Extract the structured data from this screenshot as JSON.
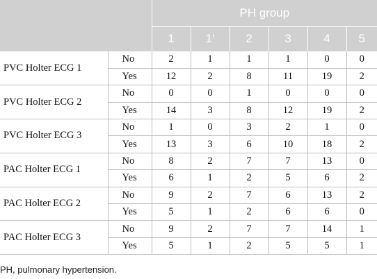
{
  "header": {
    "title": "PH group",
    "groups": [
      "1",
      "1′",
      "2",
      "3",
      "4",
      "5"
    ]
  },
  "rows": [
    {
      "measure": "PVC Holter ECG 1",
      "no": [
        "2",
        "1",
        "1",
        "1",
        "0",
        "0"
      ],
      "yes": [
        "12",
        "2",
        "8",
        "11",
        "19",
        "2"
      ]
    },
    {
      "measure": "PVC Holter ECG 2",
      "no": [
        "0",
        "0",
        "1",
        "0",
        "0",
        "0"
      ],
      "yes": [
        "14",
        "3",
        "8",
        "12",
        "19",
        "2"
      ]
    },
    {
      "measure": "PVC Holter ECG 3",
      "no": [
        "1",
        "0",
        "3",
        "2",
        "1",
        "0"
      ],
      "yes": [
        "13",
        "3",
        "6",
        "10",
        "18",
        "2"
      ]
    },
    {
      "measure": "PAC Holter ECG 1",
      "no": [
        "8",
        "2",
        "7",
        "7",
        "13",
        "0"
      ],
      "yes": [
        "6",
        "1",
        "2",
        "5",
        "6",
        "2"
      ]
    },
    {
      "measure": "PAC Holter ECG 2",
      "no": [
        "9",
        "2",
        "7",
        "6",
        "13",
        "2"
      ],
      "yes": [
        "5",
        "1",
        "2",
        "6",
        "6",
        "0"
      ]
    },
    {
      "measure": "PAC Holter ECG 3",
      "no": [
        "9",
        "2",
        "7",
        "7",
        "14",
        "1"
      ],
      "yes": [
        "5",
        "1",
        "2",
        "5",
        "5",
        "1"
      ]
    }
  ],
  "labels": {
    "no": "No",
    "yes": "Yes"
  },
  "footnote": "PH, pulmonary hypertension."
}
